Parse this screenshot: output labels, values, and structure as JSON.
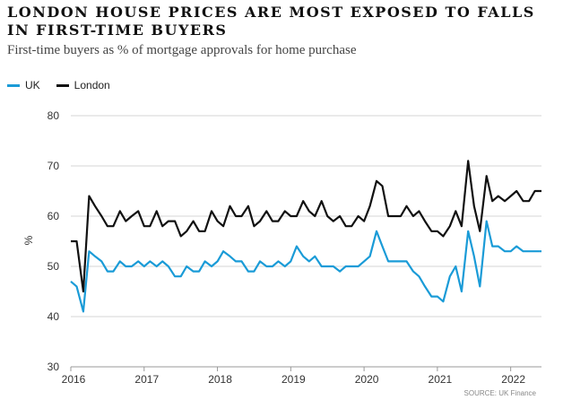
{
  "title": "LONDON HOUSE PRICES ARE MOST EXPOSED TO FALLS IN FIRST-TIME BUYERS",
  "subtitle": "First-time buyers as % of mortgage approvals for home purchase",
  "source": "SOURCE: UK Finance",
  "chart_data": {
    "type": "line",
    "title": "LONDON HOUSE PRICES ARE MOST EXPOSED TO FALLS IN FIRST-TIME BUYERS",
    "subtitle": "First-time buyers as % of mortgage approvals for home purchase",
    "ylabel": "%",
    "xlabel": "",
    "ylim": [
      30,
      80
    ],
    "yticks": [
      30,
      40,
      50,
      60,
      70,
      80
    ],
    "xlim": [
      2016.0,
      2022.42
    ],
    "xticks": [
      2016,
      2017,
      2018,
      2019,
      2020,
      2021,
      2022
    ],
    "grid": "horizontal",
    "legend_position": "top-left",
    "series": [
      {
        "name": "UK",
        "color": "#1a9bd7",
        "x": [
          2016.0,
          2016.08,
          2016.17,
          2016.25,
          2016.33,
          2016.42,
          2016.5,
          2016.58,
          2016.67,
          2016.75,
          2016.83,
          2016.92,
          2017.0,
          2017.08,
          2017.17,
          2017.25,
          2017.33,
          2017.42,
          2017.5,
          2017.58,
          2017.67,
          2017.75,
          2017.83,
          2017.92,
          2018.0,
          2018.08,
          2018.17,
          2018.25,
          2018.33,
          2018.42,
          2018.5,
          2018.58,
          2018.67,
          2018.75,
          2018.83,
          2018.92,
          2019.0,
          2019.08,
          2019.17,
          2019.25,
          2019.33,
          2019.42,
          2019.5,
          2019.58,
          2019.67,
          2019.75,
          2019.83,
          2019.92,
          2020.0,
          2020.08,
          2020.17,
          2020.25,
          2020.33,
          2020.42,
          2020.5,
          2020.58,
          2020.67,
          2020.75,
          2020.83,
          2020.92,
          2021.0,
          2021.08,
          2021.17,
          2021.25,
          2021.33,
          2021.42,
          2021.5,
          2021.58,
          2021.67,
          2021.75,
          2021.83,
          2021.92,
          2022.0,
          2022.08,
          2022.17,
          2022.25,
          2022.33,
          2022.42
        ],
        "values": [
          47,
          46,
          41,
          53,
          52,
          51,
          49,
          49,
          51,
          50,
          50,
          51,
          50,
          51,
          50,
          51,
          50,
          48,
          48,
          50,
          49,
          49,
          51,
          50,
          51,
          53,
          52,
          51,
          51,
          49,
          49,
          51,
          50,
          50,
          51,
          50,
          51,
          54,
          52,
          51,
          52,
          50,
          50,
          50,
          49,
          50,
          50,
          50,
          51,
          52,
          57,
          54,
          51,
          51,
          51,
          51,
          49,
          48,
          46,
          44,
          44,
          43,
          48,
          50,
          45,
          57,
          52,
          46,
          59,
          54,
          54,
          53,
          53,
          54,
          53,
          53,
          53,
          53
        ]
      },
      {
        "name": "London",
        "color": "#111111",
        "x": [
          2016.0,
          2016.08,
          2016.17,
          2016.25,
          2016.33,
          2016.42,
          2016.5,
          2016.58,
          2016.67,
          2016.75,
          2016.83,
          2016.92,
          2017.0,
          2017.08,
          2017.17,
          2017.25,
          2017.33,
          2017.42,
          2017.5,
          2017.58,
          2017.67,
          2017.75,
          2017.83,
          2017.92,
          2018.0,
          2018.08,
          2018.17,
          2018.25,
          2018.33,
          2018.42,
          2018.5,
          2018.58,
          2018.67,
          2018.75,
          2018.83,
          2018.92,
          2019.0,
          2019.08,
          2019.17,
          2019.25,
          2019.33,
          2019.42,
          2019.5,
          2019.58,
          2019.67,
          2019.75,
          2019.83,
          2019.92,
          2020.0,
          2020.08,
          2020.17,
          2020.25,
          2020.33,
          2020.42,
          2020.5,
          2020.58,
          2020.67,
          2020.75,
          2020.83,
          2020.92,
          2021.0,
          2021.08,
          2021.17,
          2021.25,
          2021.33,
          2021.42,
          2021.5,
          2021.58,
          2021.67,
          2021.75,
          2021.83,
          2021.92,
          2022.0,
          2022.08,
          2022.17,
          2022.25,
          2022.33,
          2022.42
        ],
        "values": [
          55,
          55,
          45,
          64,
          62,
          60,
          58,
          58,
          61,
          59,
          60,
          61,
          58,
          58,
          61,
          58,
          59,
          59,
          56,
          57,
          59,
          57,
          57,
          61,
          59,
          58,
          62,
          60,
          60,
          62,
          58,
          59,
          61,
          59,
          59,
          61,
          60,
          60,
          63,
          61,
          60,
          63,
          60,
          59,
          60,
          58,
          58,
          60,
          59,
          62,
          67,
          66,
          60,
          60,
          60,
          62,
          60,
          61,
          59,
          57,
          57,
          56,
          58,
          61,
          58,
          71,
          62,
          57,
          68,
          63,
          64,
          63,
          64,
          65,
          63,
          63,
          65,
          65
        ]
      }
    ]
  }
}
